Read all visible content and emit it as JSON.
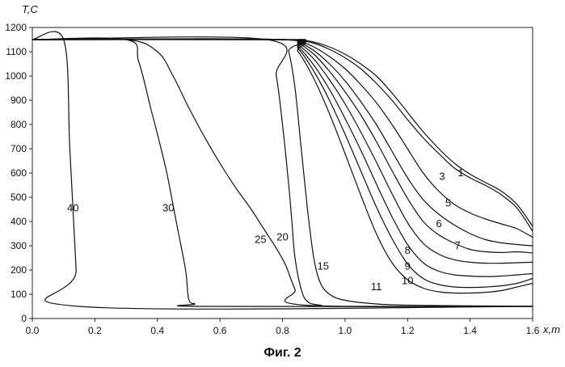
{
  "caption": "Фиг. 2",
  "chart_data": {
    "type": "line",
    "title": "",
    "xlabel": "x,m",
    "ylabel": "T,C",
    "xlim": [
      0,
      1.6
    ],
    "ylim": [
      0,
      1200
    ],
    "xticks": [
      "0.0",
      "0.2",
      "0.4",
      "0.6",
      "0.8",
      "1.0",
      "1.2",
      "1.4",
      "1.6"
    ],
    "yticks": [
      "0",
      "50",
      "100",
      "150",
      "200",
      "250",
      "300",
      "350",
      "400",
      "450",
      "500",
      "550",
      "600",
      "650",
      "700",
      "750",
      "800",
      "850",
      "900",
      "950",
      "1000",
      "1050",
      "1100",
      "1150",
      "1200"
    ],
    "grid": false,
    "legend": "none",
    "series": [
      {
        "name": "1",
        "label_at": [
          1.37,
          600
        ],
        "x": [
          0,
          0.8,
          0.85,
          0.9,
          0.95,
          1.0,
          1.05,
          1.1,
          1.15,
          1.2,
          1.25,
          1.3,
          1.35,
          1.4,
          1.45,
          1.5,
          1.55,
          1.6
        ],
        "y": [
          1150,
          1150,
          1150,
          1140,
          1120,
          1090,
          1050,
          1000,
          930,
          850,
          770,
          700,
          640,
          595,
          560,
          525,
          470,
          380
        ]
      },
      {
        "name": "3",
        "label_at": [
          1.31,
          585
        ],
        "x": [
          0,
          0.8,
          0.85,
          0.9,
          0.95,
          1.0,
          1.05,
          1.1,
          1.15,
          1.2,
          1.25,
          1.3,
          1.35,
          1.4,
          1.45,
          1.5,
          1.55,
          1.6
        ],
        "y": [
          1150,
          1150,
          1148,
          1135,
          1110,
          1075,
          1030,
          970,
          900,
          820,
          745,
          680,
          620,
          580,
          548,
          510,
          455,
          360
        ]
      },
      {
        "name": "5",
        "label_at": [
          1.33,
          475
        ],
        "x": [
          0,
          0.8,
          0.85,
          0.9,
          0.95,
          1.0,
          1.05,
          1.1,
          1.15,
          1.2,
          1.25,
          1.3,
          1.35,
          1.4,
          1.45,
          1.5,
          1.55,
          1.6
        ],
        "y": [
          1150,
          1150,
          1145,
          1120,
          1080,
          1030,
          965,
          890,
          800,
          700,
          600,
          525,
          470,
          435,
          410,
          390,
          370,
          335
        ]
      },
      {
        "name": "6",
        "label_at": [
          1.3,
          390
        ],
        "x": [
          0,
          0.8,
          0.85,
          0.9,
          0.95,
          1.0,
          1.05,
          1.1,
          1.15,
          1.2,
          1.25,
          1.3,
          1.35,
          1.4,
          1.45,
          1.5,
          1.55,
          1.6
        ],
        "y": [
          1150,
          1150,
          1140,
          1105,
          1050,
          980,
          895,
          800,
          690,
          580,
          490,
          430,
          385,
          350,
          325,
          312,
          305,
          300
        ]
      },
      {
        "name": "7",
        "label_at": [
          1.36,
          300
        ],
        "x": [
          0,
          0.8,
          0.85,
          0.9,
          0.95,
          1.0,
          1.05,
          1.1,
          1.15,
          1.2,
          1.25,
          1.3,
          1.35,
          1.4,
          1.45,
          1.5,
          1.55,
          1.6
        ],
        "y": [
          1150,
          1150,
          1135,
          1090,
          1020,
          935,
          840,
          730,
          610,
          495,
          400,
          345,
          310,
          285,
          275,
          272,
          275,
          270
        ]
      },
      {
        "name": "8",
        "label_at": [
          1.2,
          280
        ],
        "x": [
          0,
          0.8,
          0.85,
          0.9,
          0.95,
          1.0,
          1.05,
          1.1,
          1.15,
          1.2,
          1.25,
          1.3,
          1.35,
          1.4,
          1.45,
          1.5,
          1.55,
          1.6
        ],
        "y": [
          1150,
          1150,
          1128,
          1070,
          985,
          885,
          770,
          645,
          515,
          395,
          310,
          265,
          242,
          232,
          228,
          228,
          230,
          232
        ]
      },
      {
        "name": "9",
        "label_at": [
          1.2,
          215
        ],
        "x": [
          0,
          0.8,
          0.85,
          0.9,
          0.95,
          1.0,
          1.05,
          1.1,
          1.15,
          1.2,
          1.25,
          1.3,
          1.35,
          1.4,
          1.45,
          1.5,
          1.55,
          1.6
        ],
        "y": [
          1150,
          1150,
          1120,
          1045,
          945,
          825,
          695,
          555,
          420,
          305,
          230,
          195,
          180,
          175,
          173,
          175,
          180,
          185
        ]
      },
      {
        "name": "10",
        "label_at": [
          1.2,
          155
        ],
        "x": [
          0,
          0.8,
          0.85,
          0.9,
          0.95,
          1.0,
          1.05,
          1.1,
          1.15,
          1.2,
          1.25,
          1.3,
          1.35,
          1.4,
          1.45,
          1.5,
          1.55,
          1.6
        ],
        "y": [
          1150,
          1150,
          1112,
          1020,
          900,
          760,
          610,
          460,
          330,
          225,
          165,
          140,
          130,
          128,
          130,
          135,
          145,
          165
        ]
      },
      {
        "name": "11",
        "label_at": [
          1.1,
          130
        ],
        "x": [
          0,
          0.8,
          0.85,
          0.9,
          0.95,
          1.0,
          1.05,
          1.1,
          1.15,
          1.2,
          1.25,
          1.3,
          1.35,
          1.4,
          1.45,
          1.5,
          1.55,
          1.6
        ],
        "y": [
          1150,
          1150,
          1100,
          990,
          845,
          680,
          510,
          350,
          230,
          160,
          125,
          110,
          105,
          105,
          108,
          115,
          130,
          145
        ]
      },
      {
        "name": "15",
        "label_at": [
          0.93,
          215
        ],
        "x": [
          0,
          0.8,
          0.82,
          0.84,
          0.86,
          0.88,
          0.9,
          0.92,
          0.95,
          1.0,
          1.1,
          1.2,
          1.4,
          1.6
        ],
        "y": [
          1150,
          1150,
          1100,
          950,
          700,
          450,
          250,
          150,
          100,
          75,
          60,
          55,
          52,
          50
        ]
      },
      {
        "name": "20",
        "label_at": [
          0.8,
          335
        ],
        "x": [
          0,
          0.75,
          0.78,
          0.8,
          0.82,
          0.83,
          0.84,
          0.86,
          0.88,
          0.92,
          1.0,
          1.6
        ],
        "y": [
          1150,
          1150,
          1000,
          800,
          550,
          400,
          250,
          120,
          70,
          55,
          50,
          50
        ]
      },
      {
        "name": "25",
        "label_at": [
          0.73,
          325
        ],
        "x": [
          0,
          0.3,
          0.4,
          0.45,
          0.5,
          0.55,
          0.6,
          0.65,
          0.7,
          0.74,
          0.78,
          0.81,
          0.84,
          0.87,
          1.6
        ],
        "y": [
          1150,
          1150,
          1100,
          1000,
          870,
          750,
          640,
          540,
          450,
          370,
          290,
          220,
          120,
          55,
          50
        ]
      },
      {
        "name": "30",
        "label_at": [
          0.435,
          455
        ],
        "x": [
          0,
          0.3,
          0.34,
          0.38,
          0.4,
          0.43,
          0.46,
          0.49,
          0.5,
          0.52,
          0.55,
          1.6
        ],
        "y": [
          1150,
          1150,
          1060,
          860,
          760,
          600,
          400,
          200,
          80,
          60,
          50,
          50
        ]
      },
      {
        "name": "40",
        "label_at": [
          0.13,
          455
        ],
        "x": [
          0,
          0.1,
          0.12,
          0.14,
          0.15,
          1.6
        ],
        "y": [
          1150,
          1150,
          700,
          200,
          50,
          50
        ]
      }
    ]
  }
}
